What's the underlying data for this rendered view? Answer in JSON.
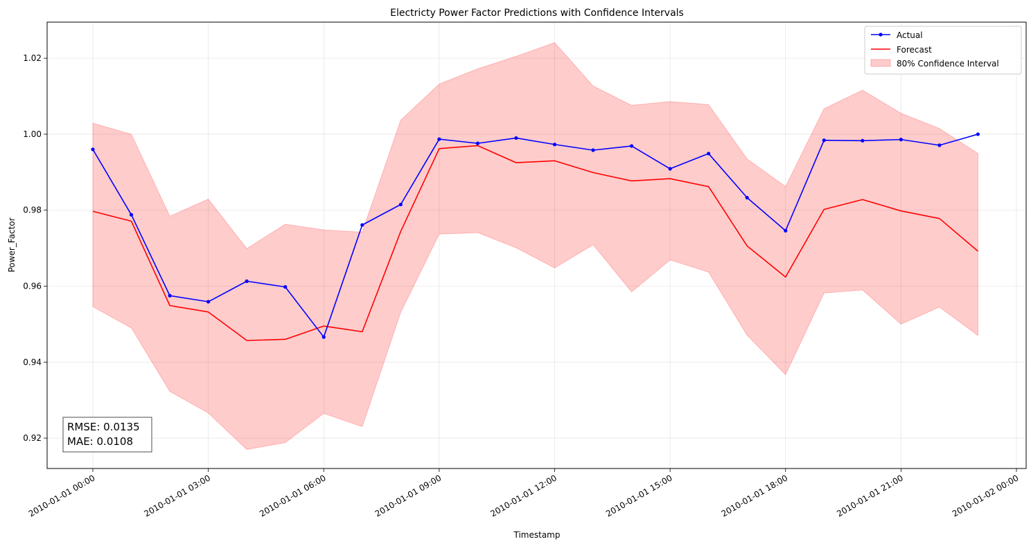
{
  "chart_data": {
    "type": "line",
    "title": "Electricty Power Factor Predictions with Confidence Intervals",
    "xlabel": "Timestamp",
    "ylabel": "Power_Factor",
    "x": [
      "2010-01-01 00:00",
      "2010-01-01 01:00",
      "2010-01-01 02:00",
      "2010-01-01 03:00",
      "2010-01-01 04:00",
      "2010-01-01 05:00",
      "2010-01-01 06:00",
      "2010-01-01 07:00",
      "2010-01-01 08:00",
      "2010-01-01 09:00",
      "2010-01-01 10:00",
      "2010-01-01 11:00",
      "2010-01-01 12:00",
      "2010-01-01 13:00",
      "2010-01-01 14:00",
      "2010-01-01 15:00",
      "2010-01-01 16:00",
      "2010-01-01 17:00",
      "2010-01-01 18:00",
      "2010-01-01 19:00",
      "2010-01-01 20:00",
      "2010-01-01 21:00",
      "2010-01-01 22:00",
      "2010-01-01 23:00"
    ],
    "x_tick_labels": [
      "2010-01-01 00:00",
      "2010-01-01 03:00",
      "2010-01-01 06:00",
      "2010-01-01 09:00",
      "2010-01-01 12:00",
      "2010-01-01 15:00",
      "2010-01-01 18:00",
      "2010-01-01 21:00",
      "2010-01-02 00:00"
    ],
    "x_range": [
      "2010-01-01 00:00",
      "2010-01-02 00:00"
    ],
    "y_ticks": [
      0.92,
      0.94,
      0.96,
      0.98,
      1.0,
      1.02
    ],
    "y_tick_labels": [
      "0.92",
      "0.94",
      "0.96",
      "0.98",
      "1.00",
      "1.02"
    ],
    "ylim": [
      0.912,
      1.0295
    ],
    "grid": true,
    "legend_position": "top-right",
    "series": [
      {
        "name": "Actual",
        "color": "#0000ff",
        "marker": "circle",
        "values": [
          0.996,
          0.9788,
          0.9575,
          0.9559,
          0.9613,
          0.9598,
          0.9466,
          0.9761,
          0.9815,
          0.9987,
          0.9976,
          0.999,
          0.9973,
          0.9958,
          0.9969,
          0.9909,
          0.9949,
          0.9833,
          0.9746,
          0.9984,
          0.9983,
          0.9986,
          0.9971,
          1.0
        ]
      },
      {
        "name": "Forecast",
        "color": "#ff0000",
        "values": [
          0.9797,
          0.9771,
          0.9549,
          0.9532,
          0.9457,
          0.946,
          0.9495,
          0.948,
          0.9744,
          0.9962,
          0.997,
          0.9925,
          0.993,
          0.9899,
          0.9877,
          0.9883,
          0.9862,
          0.9706,
          0.9624,
          0.9802,
          0.9828,
          0.9798,
          0.9778,
          0.9692
        ]
      }
    ],
    "confidence_interval": {
      "name": "80% Confidence Interval",
      "color": "#ff0000",
      "lower": [
        0.9546,
        0.949,
        0.9323,
        0.9266,
        0.917,
        0.9188,
        0.9265,
        0.923,
        0.9531,
        0.9737,
        0.9741,
        0.9701,
        0.9648,
        0.9709,
        0.9585,
        0.9669,
        0.9637,
        0.9471,
        0.9367,
        0.9582,
        0.959,
        0.95,
        0.9545,
        0.947
      ],
      "upper": [
        1.0029,
        1.0,
        0.9784,
        0.9829,
        0.9699,
        0.9763,
        0.9748,
        0.9742,
        1.0037,
        1.0132,
        1.0172,
        1.0205,
        1.0241,
        1.0127,
        1.0076,
        1.0086,
        1.0078,
        0.9935,
        0.9862,
        1.0067,
        1.0116,
        1.0055,
        1.0015,
        0.9949
      ]
    },
    "metrics": {
      "rmse": "RMSE: 0.0135",
      "mae": "MAE: 0.0108"
    }
  }
}
